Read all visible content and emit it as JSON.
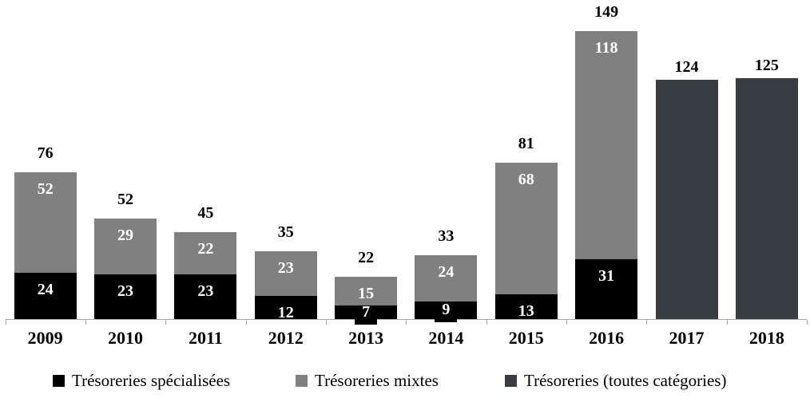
{
  "chart_data": {
    "type": "bar",
    "stacked": true,
    "title": "",
    "xlabel": "",
    "ylabel": "",
    "grid": false,
    "legend_position": "bottom",
    "ylim": [
      0,
      165
    ],
    "axis_color": "#a6a6a6",
    "text_color": "#000000",
    "segment_label_color": "#ffffff",
    "categories": [
      "2009",
      "2010",
      "2011",
      "2012",
      "2013",
      "2014",
      "2015",
      "2016",
      "2017",
      "2018"
    ],
    "series": [
      {
        "name": "Trésoreries spécialisées",
        "color": "#000000",
        "values": [
          24,
          23,
          23,
          12,
          7,
          9,
          13,
          31,
          null,
          null
        ]
      },
      {
        "name": "Trésoreries mixtes",
        "color": "#808080",
        "values": [
          52,
          29,
          22,
          23,
          15,
          24,
          68,
          118,
          null,
          null
        ]
      },
      {
        "name": "Trésoreries (toutes catégories)",
        "color": "#383c43",
        "values": [
          null,
          null,
          null,
          null,
          null,
          null,
          null,
          null,
          124,
          125
        ]
      }
    ],
    "totals": [
      76,
      52,
      45,
      35,
      22,
      33,
      81,
      149,
      124,
      125
    ]
  }
}
